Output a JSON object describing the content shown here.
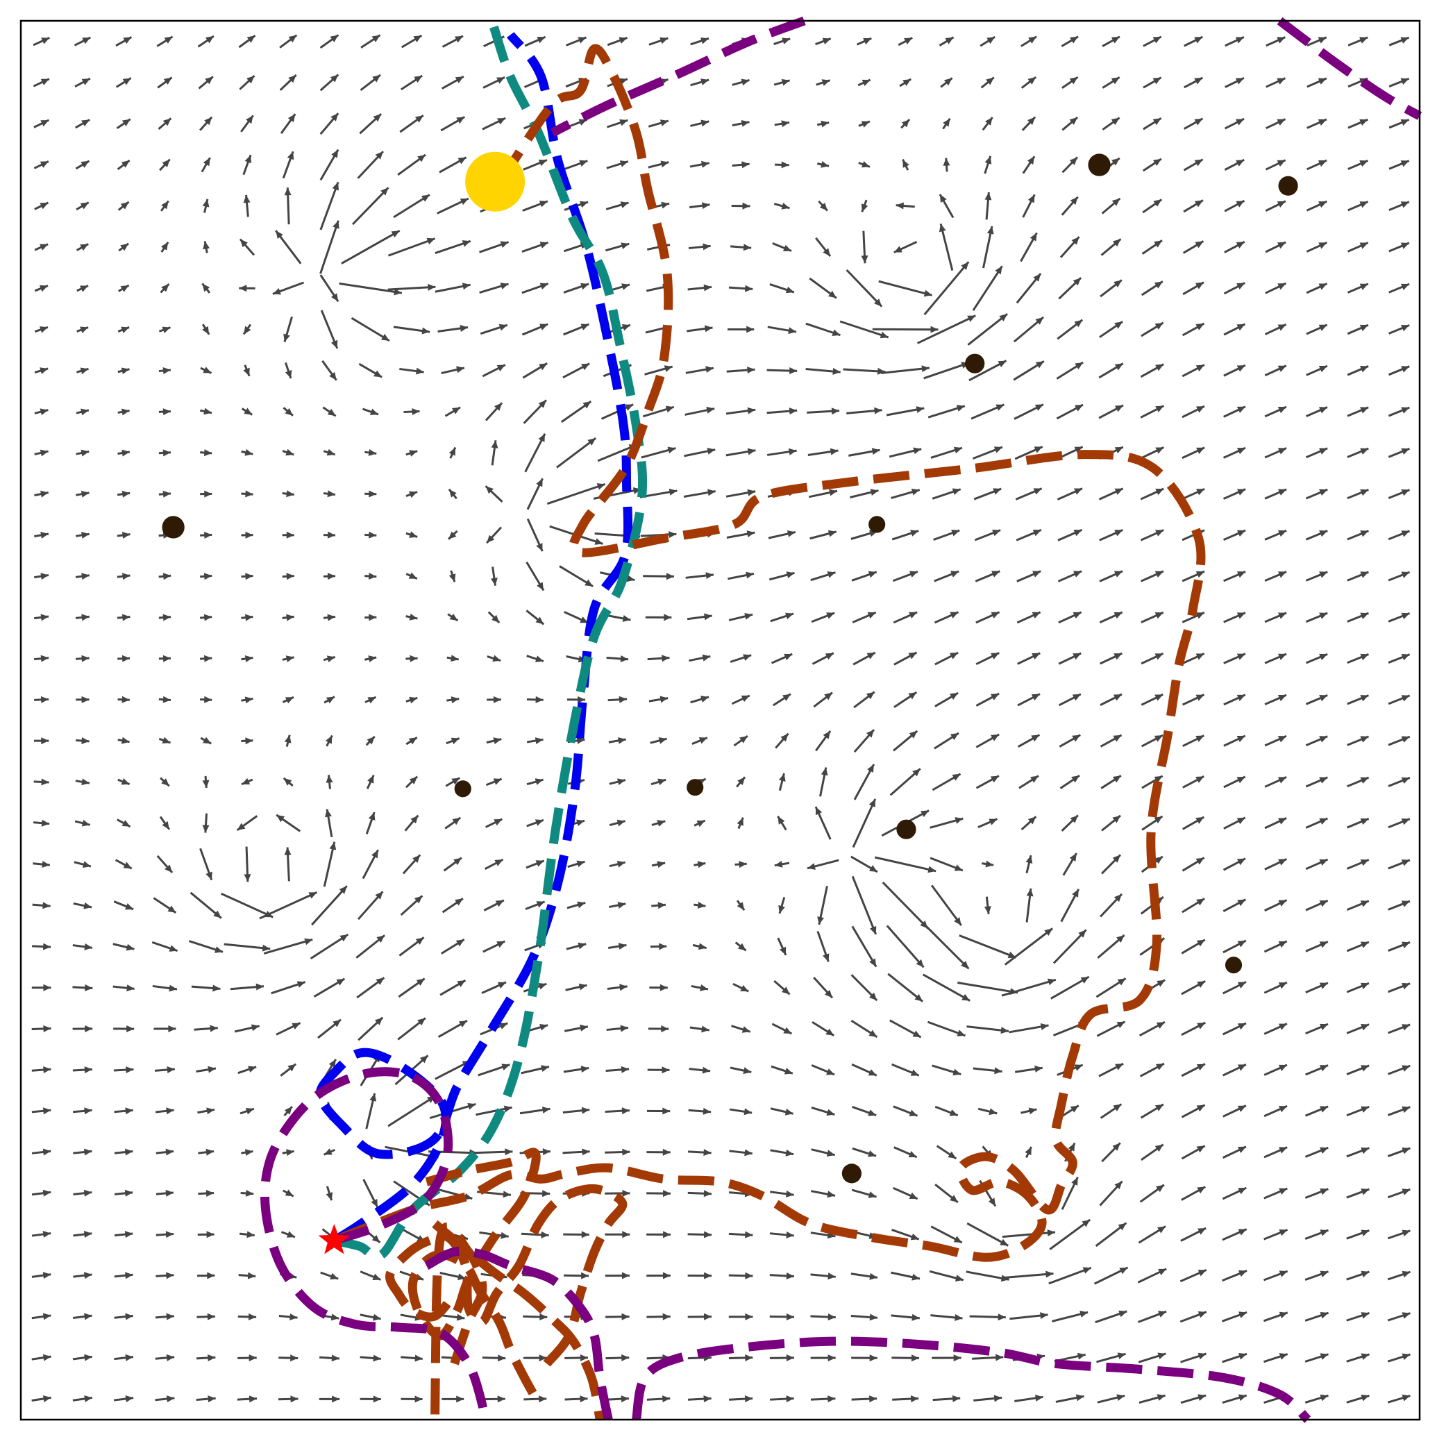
{
  "chart_data": {
    "type": "quiver",
    "title": "",
    "xlabel": "",
    "ylabel": "",
    "xlim": [
      0,
      1
    ],
    "ylim": [
      0,
      1
    ],
    "grid": false,
    "legend": "none",
    "colors": {
      "arrow": "#444444",
      "obstacle": "#2e1a05",
      "goal": "#ffd400",
      "start": "#ff0000",
      "blue": "#0000ee",
      "teal": "#0f8a80",
      "rust": "#a33a05",
      "purple": "#7a0080"
    },
    "field": {
      "nx": 34,
      "ny": 34,
      "base_direction": [
        1.0,
        0.28
      ],
      "singular_points": [
        {
          "x": 0.22,
          "y": 0.82,
          "strength": 1.0
        },
        {
          "x": 0.64,
          "y": 0.82,
          "strength": 1.0
        },
        {
          "x": 0.37,
          "y": 0.65,
          "strength": 0.8
        },
        {
          "x": 0.18,
          "y": 0.39,
          "strength": 0.9
        },
        {
          "x": 0.6,
          "y": 0.4,
          "strength": 1.0
        },
        {
          "x": 0.7,
          "y": 0.35,
          "strength": 0.8
        },
        {
          "x": 0.26,
          "y": 0.2,
          "strength": 0.7
        },
        {
          "x": 0.72,
          "y": 0.15,
          "strength": 0.6
        }
      ]
    },
    "obstacles": [
      {
        "x": 0.109,
        "y": 0.638,
        "r": 0.008
      },
      {
        "x": 0.316,
        "y": 0.451,
        "r": 0.006
      },
      {
        "x": 0.482,
        "y": 0.452,
        "r": 0.006
      },
      {
        "x": 0.612,
        "y": 0.64,
        "r": 0.006
      },
      {
        "x": 0.633,
        "y": 0.422,
        "r": 0.007
      },
      {
        "x": 0.682,
        "y": 0.755,
        "r": 0.007
      },
      {
        "x": 0.771,
        "y": 0.897,
        "r": 0.008
      },
      {
        "x": 0.906,
        "y": 0.882,
        "r": 0.007
      },
      {
        "x": 0.594,
        "y": 0.176,
        "r": 0.007
      },
      {
        "x": 0.867,
        "y": 0.325,
        "r": 0.006
      }
    ],
    "goal": {
      "x": 0.339,
      "y": 0.885
    },
    "start": {
      "x": 0.224,
      "y": 0.128
    },
    "series": [
      {
        "color": "blue",
        "points": [
          [
            0.224,
            0.128
          ],
          [
            0.246,
            0.142
          ],
          [
            0.28,
            0.168
          ],
          [
            0.3,
            0.198
          ],
          [
            0.303,
            0.222
          ],
          [
            0.289,
            0.24
          ],
          [
            0.262,
            0.258
          ],
          [
            0.242,
            0.262
          ],
          [
            0.226,
            0.25
          ],
          [
            0.214,
            0.232
          ],
          [
            0.23,
            0.21
          ],
          [
            0.256,
            0.19
          ],
          [
            0.295,
            0.2
          ],
          [
            0.312,
            0.238
          ],
          [
            0.336,
            0.278
          ],
          [
            0.366,
            0.33
          ],
          [
            0.384,
            0.384
          ],
          [
            0.396,
            0.45
          ],
          [
            0.402,
            0.518
          ],
          [
            0.41,
            0.58
          ],
          [
            0.432,
            0.618
          ],
          [
            0.433,
            0.67
          ],
          [
            0.431,
            0.71
          ],
          [
            0.42,
            0.77
          ],
          [
            0.404,
            0.84
          ],
          [
            0.384,
            0.9
          ],
          [
            0.372,
            0.96
          ],
          [
            0.35,
            0.99
          ]
        ]
      },
      {
        "color": "teal",
        "points": [
          [
            0.224,
            0.128
          ],
          [
            0.242,
            0.124
          ],
          [
            0.258,
            0.118
          ],
          [
            0.28,
            0.15
          ],
          [
            0.314,
            0.178
          ],
          [
            0.338,
            0.21
          ],
          [
            0.356,
            0.258
          ],
          [
            0.37,
            0.33
          ],
          [
            0.382,
            0.42
          ],
          [
            0.396,
            0.5
          ],
          [
            0.41,
            0.56
          ],
          [
            0.43,
            0.6
          ],
          [
            0.444,
            0.66
          ],
          [
            0.44,
            0.71
          ],
          [
            0.428,
            0.77
          ],
          [
            0.416,
            0.82
          ],
          [
            0.394,
            0.86
          ],
          [
            0.37,
            0.92
          ],
          [
            0.35,
            0.96
          ],
          [
            0.338,
            0.996
          ]
        ]
      },
      {
        "color": "rust",
        "points": [
          [
            0.224,
            0.128
          ],
          [
            0.28,
            0.15
          ],
          [
            0.32,
            0.16
          ],
          [
            0.35,
            0.175
          ],
          [
            0.372,
            0.172
          ],
          [
            0.39,
            0.176
          ],
          [
            0.42,
            0.18
          ],
          [
            0.46,
            0.172
          ],
          [
            0.5,
            0.17
          ],
          [
            0.53,
            0.16
          ],
          [
            0.565,
            0.14
          ],
          [
            0.61,
            0.13
          ],
          [
            0.65,
            0.124
          ],
          [
            0.69,
            0.116
          ],
          [
            0.716,
            0.124
          ],
          [
            0.73,
            0.14
          ],
          [
            0.72,
            0.16
          ],
          [
            0.7,
            0.17
          ],
          [
            0.68,
            0.164
          ],
          [
            0.672,
            0.18
          ],
          [
            0.69,
            0.188
          ],
          [
            0.71,
            0.178
          ],
          [
            0.734,
            0.15
          ],
          [
            0.744,
            0.168
          ],
          [
            0.752,
            0.184
          ],
          [
            0.74,
            0.2
          ],
          [
            0.744,
            0.226
          ],
          [
            0.752,
            0.26
          ],
          [
            0.765,
            0.29
          ],
          [
            0.8,
            0.3
          ],
          [
            0.812,
            0.34
          ],
          [
            0.808,
            0.42
          ],
          [
            0.82,
            0.49
          ],
          [
            0.828,
            0.54
          ],
          [
            0.838,
            0.58
          ],
          [
            0.842,
            0.63
          ],
          [
            0.81,
            0.68
          ],
          [
            0.76,
            0.69
          ],
          [
            0.68,
            0.68
          ],
          [
            0.59,
            0.67
          ],
          [
            0.53,
            0.66
          ],
          [
            0.51,
            0.64
          ],
          [
            0.46,
            0.63
          ],
          [
            0.4,
            0.62
          ],
          [
            0.402,
            0.64
          ],
          [
            0.432,
            0.68
          ],
          [
            0.448,
            0.72
          ],
          [
            0.46,
            0.76
          ],
          [
            0.462,
            0.82
          ],
          [
            0.448,
            0.88
          ],
          [
            0.44,
            0.92
          ],
          [
            0.424,
            0.96
          ],
          [
            0.41,
            0.98
          ],
          [
            0.4,
            0.95
          ],
          [
            0.38,
            0.94
          ],
          [
            0.346,
            0.89
          ]
        ]
      },
      {
        "color": "rust",
        "points": [
          [
            0.296,
            0.14
          ],
          [
            0.32,
            0.12
          ],
          [
            0.34,
            0.104
          ],
          [
            0.36,
            0.09
          ],
          [
            0.38,
            0.072
          ],
          [
            0.395,
            0.056
          ],
          [
            0.408,
            0.03
          ],
          [
            0.414,
            0.0
          ]
        ]
      },
      {
        "color": "rust",
        "points": [
          [
            0.29,
            0.17
          ],
          [
            0.32,
            0.178
          ],
          [
            0.35,
            0.184
          ],
          [
            0.368,
            0.19
          ],
          [
            0.36,
            0.16
          ],
          [
            0.338,
            0.13
          ],
          [
            0.32,
            0.1
          ],
          [
            0.312,
            0.078
          ],
          [
            0.3,
            0.06
          ],
          [
            0.286,
            0.074
          ],
          [
            0.28,
            0.095
          ],
          [
            0.286,
            0.11
          ],
          [
            0.3,
            0.118
          ],
          [
            0.318,
            0.11
          ],
          [
            0.328,
            0.092
          ],
          [
            0.342,
            0.07
          ],
          [
            0.35,
            0.05
          ],
          [
            0.36,
            0.03
          ],
          [
            0.37,
            0.012
          ]
        ]
      },
      {
        "color": "rust",
        "points": [
          [
            0.376,
            0.04
          ],
          [
            0.392,
            0.06
          ],
          [
            0.4,
            0.09
          ],
          [
            0.41,
            0.12
          ],
          [
            0.42,
            0.14
          ],
          [
            0.43,
            0.155
          ],
          [
            0.41,
            0.165
          ],
          [
            0.386,
            0.158
          ],
          [
            0.37,
            0.14
          ],
          [
            0.356,
            0.11
          ],
          [
            0.34,
            0.09
          ],
          [
            0.33,
            0.07
          ],
          [
            0.32,
            0.08
          ],
          [
            0.318,
            0.11
          ],
          [
            0.306,
            0.13
          ],
          [
            0.292,
            0.128
          ],
          [
            0.278,
            0.12
          ],
          [
            0.264,
            0.104
          ],
          [
            0.27,
            0.09
          ],
          [
            0.28,
            0.078
          ],
          [
            0.296,
            0.074
          ],
          [
            0.31,
            0.09
          ]
        ]
      },
      {
        "color": "rust",
        "points": [
          [
            0.31,
            0.04
          ],
          [
            0.32,
            0.07
          ],
          [
            0.33,
            0.094
          ],
          [
            0.32,
            0.12
          ],
          [
            0.3,
            0.13
          ],
          [
            0.296,
            0.0
          ]
        ]
      },
      {
        "color": "purple",
        "points": [
          [
            0.56,
            1.0
          ],
          [
            0.52,
            0.985
          ],
          [
            0.47,
            0.962
          ],
          [
            0.42,
            0.94
          ],
          [
            0.38,
            0.92
          ]
        ]
      },
      {
        "color": "purple",
        "points": [
          [
            0.9,
            1.0
          ],
          [
            0.94,
            0.97
          ],
          [
            0.975,
            0.946
          ],
          [
            1.0,
            0.932
          ]
        ]
      },
      {
        "color": "purple",
        "points": [
          [
            0.224,
            0.128
          ],
          [
            0.26,
            0.14
          ],
          [
            0.29,
            0.158
          ],
          [
            0.305,
            0.19
          ],
          [
            0.3,
            0.225
          ],
          [
            0.28,
            0.245
          ],
          [
            0.25,
            0.248
          ],
          [
            0.218,
            0.236
          ],
          [
            0.195,
            0.215
          ],
          [
            0.178,
            0.185
          ],
          [
            0.175,
            0.15
          ],
          [
            0.186,
            0.11
          ],
          [
            0.21,
            0.08
          ],
          [
            0.24,
            0.068
          ],
          [
            0.27,
            0.066
          ],
          [
            0.3,
            0.062
          ],
          [
            0.32,
            0.04
          ],
          [
            0.33,
            0.01
          ],
          [
            0.33,
            0.0
          ]
        ]
      },
      {
        "color": "purple",
        "points": [
          [
            0.29,
            0.11
          ],
          [
            0.31,
            0.12
          ],
          [
            0.33,
            0.118
          ],
          [
            0.35,
            0.11
          ],
          [
            0.38,
            0.1
          ],
          [
            0.4,
            0.08
          ],
          [
            0.41,
            0.06
          ],
          [
            0.414,
            0.03
          ],
          [
            0.42,
            0.0
          ]
        ]
      },
      {
        "color": "purple",
        "points": [
          [
            0.44,
            0.0
          ],
          [
            0.446,
            0.03
          ],
          [
            0.47,
            0.044
          ],
          [
            0.52,
            0.052
          ],
          [
            0.58,
            0.056
          ],
          [
            0.64,
            0.054
          ],
          [
            0.7,
            0.048
          ],
          [
            0.74,
            0.04
          ],
          [
            0.8,
            0.036
          ],
          [
            0.86,
            0.03
          ],
          [
            0.9,
            0.018
          ],
          [
            0.92,
            0.0
          ]
        ]
      }
    ]
  }
}
